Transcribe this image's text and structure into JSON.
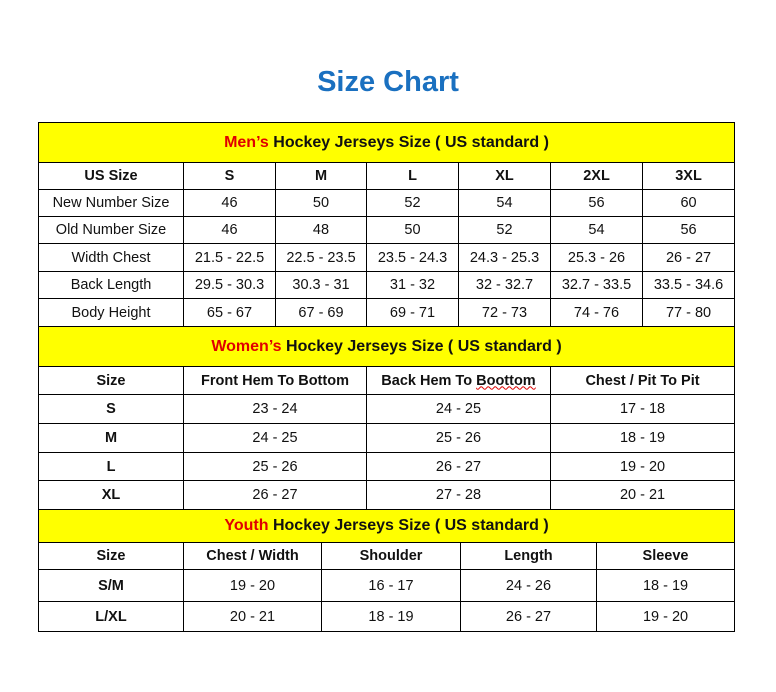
{
  "title": "Size Chart",
  "men": {
    "prefix": "Men’s",
    "heading": " Hockey Jerseys Size ( US standard )",
    "columns": [
      "US Size",
      "S",
      "M",
      "L",
      "XL",
      "2XL",
      "3XL"
    ],
    "rows": [
      [
        "New Number Size",
        "46",
        "50",
        "52",
        "54",
        "56",
        "60"
      ],
      [
        "Old Number Size",
        "46",
        "48",
        "50",
        "52",
        "54",
        "56"
      ],
      [
        "Width Chest",
        "21.5 - 22.5",
        "22.5 - 23.5",
        "23.5 - 24.3",
        "24.3 - 25.3",
        "25.3 - 26",
        "26 - 27"
      ],
      [
        "Back Length",
        "29.5 - 30.3",
        "30.3 - 31",
        "31 - 32",
        "32 - 32.7",
        "32.7 - 33.5",
        "33.5 - 34.6"
      ],
      [
        "Body Height",
        "65 - 67",
        "67 - 69",
        "69 - 71",
        "72 - 73",
        "74 - 76",
        "77 - 80"
      ]
    ]
  },
  "women": {
    "prefix": "Women’s",
    "heading": " Hockey Jerseys Size ( US standard )",
    "columns": [
      "Size",
      "Front Hem To Bottom",
      "Back Hem To Boottom",
      "Chest / Pit To Pit"
    ],
    "rows": [
      [
        "S",
        "23 - 24",
        "24 - 25",
        "17 - 18"
      ],
      [
        "M",
        "24 - 25",
        "25 - 26",
        "18 - 19"
      ],
      [
        "L",
        "25 - 26",
        "26 - 27",
        "19 - 20"
      ],
      [
        "XL",
        "26 - 27",
        "27 - 28",
        "20 - 21"
      ]
    ]
  },
  "youth": {
    "prefix": "Youth",
    "heading": " Hockey Jerseys Size ( US standard )",
    "columns": [
      "Size",
      "Chest / Width",
      "Shoulder",
      "Length",
      "Sleeve"
    ],
    "rows": [
      [
        "S/M",
        "19 - 20",
        "16 - 17",
        "24 - 26",
        "18 - 19"
      ],
      [
        "L/XL",
        "20 - 21",
        "18 - 19",
        "26 - 27",
        "19 - 20"
      ]
    ]
  },
  "colors": {
    "title": "#1a70c0",
    "band": "#ffff00",
    "highlight": "#e00000"
  }
}
